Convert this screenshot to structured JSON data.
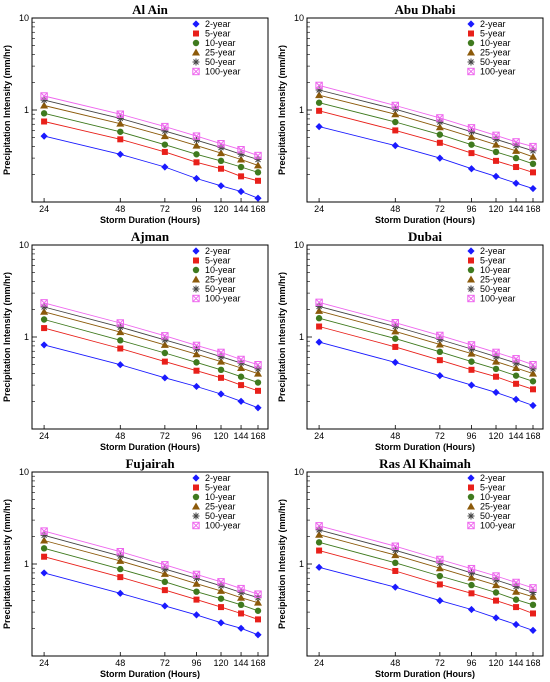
{
  "chart_data": [
    {
      "type": "scatter",
      "title": "Al Ain",
      "scale": "log-log",
      "xlabel": "Storm Duration (Hours)",
      "ylabel": "Precipitation Intensity (mm/hr)",
      "x": [
        24,
        48,
        72,
        96,
        120,
        144,
        168
      ],
      "xticks": [
        "24",
        "48",
        "72",
        "96",
        "120",
        "144",
        "168"
      ],
      "yticks": [
        "10",
        "1"
      ],
      "ylim": [
        0.1,
        10
      ],
      "legend_position": "top-right",
      "series": [
        {
          "name": "2-year",
          "values": [
            0.52,
            0.33,
            0.24,
            0.18,
            0.15,
            0.13,
            0.11
          ]
        },
        {
          "name": "5-year",
          "values": [
            0.75,
            0.48,
            0.35,
            0.27,
            0.23,
            0.19,
            0.17
          ]
        },
        {
          "name": "10-year",
          "values": [
            0.92,
            0.58,
            0.42,
            0.33,
            0.28,
            0.24,
            0.21
          ]
        },
        {
          "name": "25-year",
          "values": [
            1.12,
            0.71,
            0.52,
            0.41,
            0.34,
            0.29,
            0.25
          ]
        },
        {
          "name": "50-year",
          "values": [
            1.28,
            0.81,
            0.59,
            0.47,
            0.39,
            0.33,
            0.29
          ]
        },
        {
          "name": "100-year",
          "values": [
            1.42,
            0.9,
            0.66,
            0.52,
            0.43,
            0.37,
            0.32
          ]
        }
      ]
    },
    {
      "type": "scatter",
      "title": "Abu Dhabi",
      "scale": "log-log",
      "xlabel": "Storm Duration (Hours)",
      "ylabel": "Precipitation Intensity (mm/hr)",
      "x": [
        24,
        48,
        72,
        96,
        120,
        144,
        168
      ],
      "xticks": [
        "24",
        "48",
        "72",
        "96",
        "120",
        "144",
        "168"
      ],
      "yticks": [
        "10",
        "1"
      ],
      "ylim": [
        0.1,
        10
      ],
      "legend_position": "top-right",
      "series": [
        {
          "name": "2-year",
          "values": [
            0.66,
            0.41,
            0.3,
            0.23,
            0.19,
            0.16,
            0.14
          ]
        },
        {
          "name": "5-year",
          "values": [
            0.98,
            0.6,
            0.44,
            0.34,
            0.28,
            0.24,
            0.21
          ]
        },
        {
          "name": "10-year",
          "values": [
            1.2,
            0.74,
            0.54,
            0.42,
            0.35,
            0.3,
            0.26
          ]
        },
        {
          "name": "25-year",
          "values": [
            1.45,
            0.9,
            0.65,
            0.51,
            0.42,
            0.36,
            0.31
          ]
        },
        {
          "name": "50-year",
          "values": [
            1.65,
            1.02,
            0.74,
            0.58,
            0.48,
            0.41,
            0.36
          ]
        },
        {
          "name": "100-year",
          "values": [
            1.85,
            1.12,
            0.82,
            0.64,
            0.53,
            0.45,
            0.4
          ]
        }
      ]
    },
    {
      "type": "scatter",
      "title": "Ajman",
      "scale": "log-log",
      "xlabel": "Storm Duration (Hours)",
      "ylabel": "Precipitation Intensity (mm/hr)",
      "x": [
        24,
        48,
        72,
        96,
        120,
        144,
        168
      ],
      "xticks": [
        "24",
        "48",
        "72",
        "96",
        "120",
        "144",
        "168"
      ],
      "yticks": [
        "10",
        "1"
      ],
      "ylim": [
        0.1,
        10
      ],
      "legend_position": "top-right",
      "series": [
        {
          "name": "2-year",
          "values": [
            0.82,
            0.5,
            0.36,
            0.29,
            0.24,
            0.2,
            0.17
          ]
        },
        {
          "name": "5-year",
          "values": [
            1.25,
            0.75,
            0.54,
            0.43,
            0.36,
            0.3,
            0.26
          ]
        },
        {
          "name": "10-year",
          "values": [
            1.55,
            0.92,
            0.67,
            0.53,
            0.44,
            0.37,
            0.32
          ]
        },
        {
          "name": "25-year",
          "values": [
            1.88,
            1.13,
            0.82,
            0.65,
            0.54,
            0.46,
            0.4
          ]
        },
        {
          "name": "50-year",
          "values": [
            2.12,
            1.28,
            0.93,
            0.74,
            0.61,
            0.52,
            0.45
          ]
        },
        {
          "name": "100-year",
          "values": [
            2.35,
            1.42,
            1.03,
            0.81,
            0.68,
            0.57,
            0.5
          ]
        }
      ]
    },
    {
      "type": "scatter",
      "title": "Dubai",
      "scale": "log-log",
      "xlabel": "Storm Duration (Hours)",
      "ylabel": "Precipitation Intensity (mm/hr)",
      "x": [
        24,
        48,
        72,
        96,
        120,
        144,
        168
      ],
      "xticks": [
        "24",
        "48",
        "72",
        "96",
        "120",
        "144",
        "168"
      ],
      "yticks": [
        "10",
        "1"
      ],
      "ylim": [
        0.1,
        10
      ],
      "legend_position": "top-right",
      "series": [
        {
          "name": "2-year",
          "values": [
            0.88,
            0.53,
            0.38,
            0.3,
            0.25,
            0.21,
            0.18
          ]
        },
        {
          "name": "5-year",
          "values": [
            1.3,
            0.78,
            0.56,
            0.44,
            0.37,
            0.31,
            0.27
          ]
        },
        {
          "name": "10-year",
          "values": [
            1.6,
            0.96,
            0.69,
            0.54,
            0.45,
            0.38,
            0.33
          ]
        },
        {
          "name": "25-year",
          "values": [
            1.92,
            1.15,
            0.83,
            0.66,
            0.54,
            0.46,
            0.4
          ]
        },
        {
          "name": "50-year",
          "values": [
            2.15,
            1.3,
            0.94,
            0.74,
            0.61,
            0.52,
            0.45
          ]
        },
        {
          "name": "100-year",
          "values": [
            2.38,
            1.43,
            1.04,
            0.82,
            0.68,
            0.58,
            0.5
          ]
        }
      ]
    },
    {
      "type": "scatter",
      "title": "Fujairah",
      "scale": "log-log",
      "xlabel": "Storm Duration (Hours)",
      "ylabel": "Precipitation Intensity (mm/hr)",
      "x": [
        24,
        48,
        72,
        96,
        120,
        144,
        168
      ],
      "xticks": [
        "24",
        "48",
        "72",
        "96",
        "120",
        "144",
        "168"
      ],
      "yticks": [
        "10",
        "1"
      ],
      "ylim": [
        0.1,
        10
      ],
      "legend_position": "top-right",
      "series": [
        {
          "name": "2-year",
          "values": [
            0.8,
            0.48,
            0.35,
            0.28,
            0.23,
            0.2,
            0.17
          ]
        },
        {
          "name": "5-year",
          "values": [
            1.2,
            0.72,
            0.52,
            0.41,
            0.34,
            0.29,
            0.25
          ]
        },
        {
          "name": "10-year",
          "values": [
            1.48,
            0.88,
            0.64,
            0.5,
            0.42,
            0.36,
            0.31
          ]
        },
        {
          "name": "25-year",
          "values": [
            1.8,
            1.08,
            0.78,
            0.61,
            0.51,
            0.43,
            0.38
          ]
        },
        {
          "name": "50-year",
          "values": [
            2.05,
            1.22,
            0.88,
            0.7,
            0.58,
            0.49,
            0.43
          ]
        },
        {
          "name": "100-year",
          "values": [
            2.28,
            1.36,
            0.98,
            0.77,
            0.64,
            0.54,
            0.47
          ]
        }
      ]
    },
    {
      "type": "scatter",
      "title": "Ras Al Khaimah",
      "scale": "log-log",
      "xlabel": "Storm Duration (Hours)",
      "ylabel": "Precipitation Intensity (mm/hr)",
      "x": [
        24,
        48,
        72,
        96,
        120,
        144,
        168
      ],
      "xticks": [
        "24",
        "48",
        "72",
        "96",
        "120",
        "144",
        "168"
      ],
      "yticks": [
        "10",
        "1"
      ],
      "ylim": [
        0.1,
        10
      ],
      "legend_position": "top-right",
      "series": [
        {
          "name": "2-year",
          "values": [
            0.92,
            0.56,
            0.4,
            0.32,
            0.26,
            0.22,
            0.19
          ]
        },
        {
          "name": "5-year",
          "values": [
            1.4,
            0.84,
            0.6,
            0.48,
            0.4,
            0.34,
            0.29
          ]
        },
        {
          "name": "10-year",
          "values": [
            1.72,
            1.03,
            0.74,
            0.59,
            0.49,
            0.41,
            0.36
          ]
        },
        {
          "name": "25-year",
          "values": [
            2.08,
            1.25,
            0.9,
            0.71,
            0.59,
            0.5,
            0.44
          ]
        },
        {
          "name": "50-year",
          "values": [
            2.35,
            1.41,
            1.02,
            0.8,
            0.67,
            0.57,
            0.49
          ]
        },
        {
          "name": "100-year",
          "values": [
            2.6,
            1.56,
            1.12,
            0.89,
            0.74,
            0.63,
            0.55
          ]
        }
      ]
    }
  ],
  "series_style": [
    {
      "color": "#1a1aff",
      "marker": "diamond"
    },
    {
      "color": "#e8201a",
      "marker": "square"
    },
    {
      "color": "#3f7a1e",
      "marker": "circle"
    },
    {
      "color": "#8c5a0a",
      "marker": "triangle"
    },
    {
      "color": "#444444",
      "marker": "star"
    },
    {
      "color": "#ee66ee",
      "marker": "box-x"
    }
  ]
}
